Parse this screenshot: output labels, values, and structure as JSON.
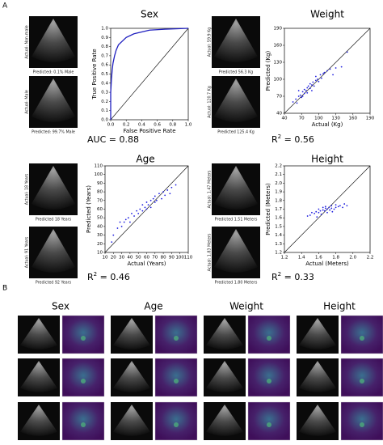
{
  "panel_labels": [
    "A",
    "B"
  ],
  "chart_data": [
    {
      "type": "line",
      "title": "Sex",
      "xlabel": "False Positive Rate",
      "ylabel": "True Positive Rate",
      "metric": {
        "label": "AUC = 0.88"
      },
      "color": "#1f1fbf",
      "x": [
        0,
        0,
        0.01,
        0.02,
        0.03,
        0.05,
        0.07,
        0.1,
        0.15,
        0.2,
        0.3,
        0.4,
        0.5,
        0.7,
        1
      ],
      "values": [
        0,
        0.3,
        0.45,
        0.55,
        0.62,
        0.7,
        0.76,
        0.82,
        0.86,
        0.9,
        0.94,
        0.96,
        0.98,
        0.99,
        1
      ],
      "xlim": [
        0,
        1
      ],
      "ylim": [
        0,
        1
      ],
      "xticks": [
        {
          "value": 0,
          "label": "0.0"
        },
        0.2,
        0.4,
        0.6,
        0.8,
        {
          "value": 1,
          "label": "1.0"
        }
      ],
      "yticks": [
        {
          "value": 0,
          "label": "0.0"
        },
        0.1,
        0.2,
        0.3,
        0.4,
        0.5,
        0.6,
        0.7,
        0.8,
        0.9,
        {
          "value": 1,
          "label": "1.0"
        }
      ],
      "examples": [
        {
          "actual": "Actual: Non-male",
          "predicted": "Predicted: 0.1% Male"
        },
        {
          "actual": "Actual: Male",
          "predicted": "Predicted: 99.7% Male"
        }
      ]
    },
    {
      "type": "scatter",
      "title": "Weight",
      "xlabel": "Actual (Kg)",
      "ylabel": "Predicted (Kg)",
      "metric": {
        "label": "R",
        "power": "2",
        "value": " = 0.56"
      },
      "color": "#1f1fdf",
      "x": [
        55,
        60,
        62,
        65,
        68,
        70,
        72,
        75,
        75,
        78,
        80,
        80,
        82,
        85,
        85,
        88,
        90,
        92,
        95,
        95,
        98,
        100,
        103,
        105,
        108,
        110,
        115,
        120,
        125,
        130,
        140,
        150,
        65,
        72,
        88
      ],
      "values": [
        60,
        65,
        58,
        70,
        72,
        68,
        78,
        75,
        82,
        80,
        85,
        76,
        88,
        84,
        92,
        90,
        95,
        88,
        98,
        105,
        100,
        96,
        108,
        102,
        110,
        112,
        115,
        118,
        108,
        120,
        122,
        148,
        80,
        70,
        80
      ],
      "xlim": [
        40,
        190
      ],
      "ylim": [
        40,
        190
      ],
      "xticks": [
        40,
        70,
        100,
        130,
        160,
        190
      ],
      "yticks": [
        40,
        70,
        100,
        130,
        160,
        190
      ],
      "examples": [
        {
          "actual": "Actual: 59.9 Kg",
          "predicted": "Predicted 56.3 Kg"
        },
        {
          "actual": "Actual: 120.7 Kg",
          "predicted": "Predicted 125.4 Kg"
        }
      ]
    },
    {
      "type": "scatter",
      "title": "Age",
      "xlabel": "Actual (Years)",
      "ylabel": "Predicted (Years)",
      "metric": {
        "label": "R",
        "power": "2",
        "value": " = 0.46"
      },
      "color": "#1f1fdf",
      "x": [
        18,
        25,
        28,
        30,
        35,
        38,
        40,
        42,
        45,
        48,
        50,
        52,
        55,
        55,
        58,
        60,
        60,
        62,
        65,
        65,
        68,
        70,
        70,
        72,
        75,
        78,
        80,
        82,
        85,
        88,
        90,
        95,
        20,
        33
      ],
      "values": [
        22,
        38,
        45,
        40,
        48,
        50,
        45,
        55,
        52,
        58,
        55,
        60,
        58,
        65,
        62,
        60,
        68,
        65,
        70,
        62,
        72,
        68,
        75,
        70,
        78,
        72,
        80,
        76,
        82,
        78,
        85,
        88,
        30,
        45
      ],
      "xlim": [
        10,
        110
      ],
      "ylim": [
        10,
        110
      ],
      "xticks": [
        10,
        20,
        30,
        40,
        50,
        60,
        70,
        80,
        90,
        100,
        110
      ],
      "yticks": [
        10,
        20,
        30,
        40,
        50,
        60,
        70,
        80,
        90,
        100,
        110
      ],
      "examples": [
        {
          "actual": "Actual: 18 Years",
          "predicted": "Predicted 18 Years"
        },
        {
          "actual": "Actual: 91 Years",
          "predicted": "Predicted 92 Years"
        }
      ]
    },
    {
      "type": "scatter",
      "title": "Height",
      "xlabel": "Actual (Meters)",
      "ylabel": "Predicted (Meters)",
      "metric": {
        "label": "R",
        "power": "2",
        "value": " = 0.33"
      },
      "color": "#1f1fdf",
      "x": [
        1.47,
        1.5,
        1.52,
        1.55,
        1.57,
        1.6,
        1.6,
        1.62,
        1.63,
        1.65,
        1.65,
        1.67,
        1.68,
        1.7,
        1.7,
        1.72,
        1.73,
        1.75,
        1.75,
        1.78,
        1.8,
        1.8,
        1.83,
        1.85,
        1.88,
        1.9,
        1.93,
        1.58,
        1.68,
        1.76
      ],
      "values": [
        1.62,
        1.63,
        1.66,
        1.65,
        1.67,
        1.66,
        1.7,
        1.68,
        1.64,
        1.69,
        1.72,
        1.68,
        1.71,
        1.7,
        1.66,
        1.72,
        1.69,
        1.71,
        1.74,
        1.7,
        1.72,
        1.75,
        1.73,
        1.74,
        1.72,
        1.76,
        1.74,
        1.61,
        1.73,
        1.67
      ],
      "xlim": [
        1.2,
        2.2
      ],
      "ylim": [
        1.2,
        2.2
      ],
      "xticks": [
        1.2,
        1.4,
        1.6,
        1.8,
        {
          "value": 2,
          "label": "2.0"
        },
        2.2
      ],
      "yticks": [
        1.2,
        1.3,
        1.4,
        1.5,
        1.6,
        1.7,
        1.8,
        1.9,
        {
          "value": 2,
          "label": "2.0"
        },
        2.1,
        2.2
      ],
      "examples": [
        {
          "actual": "Actual: 1.47 Meters",
          "predicted": "Predicted 1.51 Meters"
        },
        {
          "actual": "Actual: 1.83 Meters",
          "predicted": "Predicted 1.80 Meters"
        }
      ]
    }
  ],
  "panel_b": {
    "titles": [
      "Sex",
      "Age",
      "Weight",
      "Height"
    ]
  }
}
